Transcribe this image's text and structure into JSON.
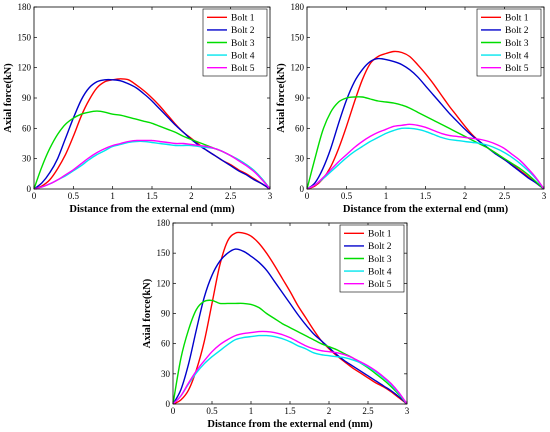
{
  "chart_data": [
    {
      "type": "line",
      "xlabel": "Distance from the external end (mm)",
      "ylabel": "Axial force(kN)",
      "xlim": [
        0,
        3
      ],
      "ylim": [
        0,
        180
      ],
      "xticks": [
        "0",
        "0.5",
        "1",
        "1.5",
        "2",
        "2.5",
        "3"
      ],
      "yticks": [
        "0",
        "30",
        "60",
        "90",
        "120",
        "150",
        "180"
      ],
      "grid": false,
      "legend_position": "top-right",
      "series": [
        {
          "name": "Bolt 1",
          "color": "#ff0000",
          "x": [
            0,
            0.1,
            0.2,
            0.3,
            0.4,
            0.5,
            0.6,
            0.7,
            0.8,
            0.9,
            1.0,
            1.1,
            1.2,
            1.3,
            1.4,
            1.5,
            1.6,
            1.7,
            1.8,
            1.9,
            2.0,
            2.1,
            2.2,
            2.3,
            2.4,
            2.5,
            2.6,
            2.7,
            2.8,
            2.9,
            3.0
          ],
          "y": [
            0,
            3,
            9,
            20,
            34,
            52,
            72,
            88,
            100,
            106,
            108,
            109,
            108,
            103,
            97,
            90,
            82,
            73,
            64,
            56,
            50,
            44,
            38,
            33,
            28,
            24,
            19,
            15,
            10,
            5,
            0
          ]
        },
        {
          "name": "Bolt 2",
          "color": "#0000cc",
          "x": [
            0,
            0.1,
            0.2,
            0.3,
            0.4,
            0.5,
            0.6,
            0.7,
            0.8,
            0.9,
            1.0,
            1.1,
            1.2,
            1.3,
            1.4,
            1.5,
            1.6,
            1.7,
            1.8,
            1.9,
            2.0,
            2.1,
            2.2,
            2.3,
            2.4,
            2.5,
            2.6,
            2.7,
            2.8,
            2.9,
            3.0
          ],
          "y": [
            0,
            6,
            16,
            30,
            50,
            70,
            88,
            100,
            106,
            108,
            108,
            107,
            104,
            100,
            94,
            87,
            79,
            71,
            63,
            56,
            49,
            43,
            38,
            33,
            28,
            23,
            18,
            14,
            9,
            5,
            0
          ]
        },
        {
          "name": "Bolt 3",
          "color": "#00dd00",
          "x": [
            0,
            0.1,
            0.2,
            0.3,
            0.4,
            0.5,
            0.6,
            0.7,
            0.8,
            0.9,
            1.0,
            1.1,
            1.2,
            1.3,
            1.4,
            1.5,
            1.6,
            1.7,
            1.8,
            1.9,
            2.0,
            2.1,
            2.2,
            2.3,
            2.4,
            2.5,
            2.6,
            2.7,
            2.8,
            2.9,
            3.0
          ],
          "y": [
            0,
            22,
            40,
            54,
            64,
            70,
            74,
            76,
            77,
            76,
            74,
            73,
            71,
            69,
            67,
            65,
            62,
            59,
            56,
            52,
            49,
            46,
            43,
            40,
            37,
            33,
            29,
            24,
            18,
            10,
            0
          ]
        },
        {
          "name": "Bolt 4",
          "color": "#00e5ee",
          "x": [
            0,
            0.1,
            0.2,
            0.3,
            0.4,
            0.5,
            0.6,
            0.7,
            0.8,
            0.9,
            1.0,
            1.1,
            1.2,
            1.3,
            1.4,
            1.5,
            1.6,
            1.7,
            1.8,
            1.9,
            2.0,
            2.1,
            2.2,
            2.3,
            2.4,
            2.5,
            2.6,
            2.7,
            2.8,
            2.9,
            3.0
          ],
          "y": [
            0,
            2,
            5,
            9,
            13,
            18,
            23,
            29,
            34,
            38,
            42,
            44,
            46,
            47,
            47,
            46,
            45,
            44,
            43,
            43,
            43,
            42,
            41,
            40,
            37,
            33,
            29,
            24,
            18,
            10,
            0
          ]
        },
        {
          "name": "Bolt 5",
          "color": "#ff00ff",
          "x": [
            0,
            0.1,
            0.2,
            0.3,
            0.4,
            0.5,
            0.6,
            0.7,
            0.8,
            0.9,
            1.0,
            1.1,
            1.2,
            1.3,
            1.4,
            1.5,
            1.6,
            1.7,
            1.8,
            1.9,
            2.0,
            2.1,
            2.2,
            2.3,
            2.4,
            2.5,
            2.6,
            2.7,
            2.8,
            2.9,
            3.0
          ],
          "y": [
            0,
            2,
            5,
            9,
            14,
            19,
            25,
            31,
            36,
            40,
            43,
            45,
            47,
            48,
            48,
            48,
            47,
            46,
            45,
            45,
            44,
            43,
            42,
            40,
            37,
            33,
            28,
            23,
            17,
            9,
            0
          ]
        }
      ]
    },
    {
      "type": "line",
      "xlabel": "Distance from the external end (mm)",
      "ylabel": "Axial force(kN)",
      "xlim": [
        0,
        3
      ],
      "ylim": [
        0,
        180
      ],
      "xticks": [
        "0",
        "0.5",
        "1",
        "1.5",
        "2",
        "2.5",
        "3"
      ],
      "yticks": [
        "0",
        "30",
        "60",
        "90",
        "120",
        "150",
        "180"
      ],
      "grid": false,
      "legend_position": "top-right",
      "series": [
        {
          "name": "Bolt 1",
          "color": "#ff0000",
          "x": [
            0,
            0.1,
            0.2,
            0.3,
            0.4,
            0.5,
            0.6,
            0.7,
            0.8,
            0.9,
            1.0,
            1.1,
            1.2,
            1.3,
            1.4,
            1.5,
            1.6,
            1.7,
            1.8,
            1.9,
            2.0,
            2.1,
            2.2,
            2.3,
            2.4,
            2.5,
            2.6,
            2.7,
            2.8,
            2.9,
            3.0
          ],
          "y": [
            0,
            3,
            10,
            22,
            40,
            62,
            86,
            108,
            124,
            131,
            134,
            136,
            135,
            131,
            123,
            114,
            104,
            93,
            82,
            72,
            62,
            53,
            46,
            40,
            35,
            29,
            24,
            18,
            12,
            6,
            0
          ]
        },
        {
          "name": "Bolt 2",
          "color": "#0000cc",
          "x": [
            0,
            0.1,
            0.2,
            0.3,
            0.4,
            0.5,
            0.6,
            0.7,
            0.8,
            0.9,
            1.0,
            1.1,
            1.2,
            1.3,
            1.4,
            1.5,
            1.6,
            1.7,
            1.8,
            1.9,
            2.0,
            2.1,
            2.2,
            2.3,
            2.4,
            2.5,
            2.6,
            2.7,
            2.8,
            2.9,
            3.0
          ],
          "y": [
            0,
            6,
            20,
            40,
            65,
            88,
            106,
            118,
            126,
            129,
            128,
            126,
            123,
            118,
            111,
            102,
            93,
            84,
            75,
            67,
            59,
            52,
            46,
            40,
            34,
            29,
            23,
            17,
            11,
            6,
            0
          ]
        },
        {
          "name": "Bolt 3",
          "color": "#00dd00",
          "x": [
            0,
            0.1,
            0.2,
            0.3,
            0.4,
            0.5,
            0.6,
            0.7,
            0.8,
            0.9,
            1.0,
            1.1,
            1.2,
            1.3,
            1.4,
            1.5,
            1.6,
            1.7,
            1.8,
            1.9,
            2.0,
            2.1,
            2.2,
            2.3,
            2.4,
            2.5,
            2.6,
            2.7,
            2.8,
            2.9,
            3.0
          ],
          "y": [
            0,
            30,
            58,
            76,
            86,
            90,
            91,
            91,
            89,
            87,
            86,
            85,
            83,
            80,
            76,
            72,
            68,
            64,
            60,
            56,
            52,
            48,
            44,
            40,
            35,
            30,
            25,
            20,
            14,
            7,
            0
          ]
        },
        {
          "name": "Bolt 4",
          "color": "#00e5ee",
          "x": [
            0,
            0.1,
            0.2,
            0.3,
            0.4,
            0.5,
            0.6,
            0.7,
            0.8,
            0.9,
            1.0,
            1.1,
            1.2,
            1.3,
            1.4,
            1.5,
            1.6,
            1.7,
            1.8,
            1.9,
            2.0,
            2.1,
            2.2,
            2.3,
            2.4,
            2.5,
            2.6,
            2.7,
            2.8,
            2.9,
            3.0
          ],
          "y": [
            0,
            4,
            10,
            17,
            24,
            31,
            37,
            42,
            47,
            51,
            55,
            58,
            60,
            60,
            59,
            57,
            54,
            51,
            49,
            48,
            47,
            46,
            45,
            43,
            40,
            36,
            31,
            25,
            18,
            10,
            0
          ]
        },
        {
          "name": "Bolt 5",
          "color": "#ff00ff",
          "x": [
            0,
            0.1,
            0.2,
            0.3,
            0.4,
            0.5,
            0.6,
            0.7,
            0.8,
            0.9,
            1.0,
            1.1,
            1.2,
            1.3,
            1.4,
            1.5,
            1.6,
            1.7,
            1.8,
            1.9,
            2.0,
            2.1,
            2.2,
            2.3,
            2.4,
            2.5,
            2.6,
            2.7,
            2.8,
            2.9,
            3.0
          ],
          "y": [
            0,
            4,
            11,
            19,
            27,
            34,
            41,
            47,
            52,
            56,
            59,
            62,
            63,
            64,
            63,
            61,
            58,
            55,
            53,
            52,
            51,
            50,
            49,
            47,
            44,
            40,
            34,
            28,
            20,
            11,
            0
          ]
        }
      ]
    },
    {
      "type": "line",
      "xlabel": "Distance from the external end (mm)",
      "ylabel": "Axial force(kN)",
      "xlim": [
        0,
        3
      ],
      "ylim": [
        0,
        180
      ],
      "xticks": [
        "0",
        "0.5",
        "1",
        "1.5",
        "2",
        "2.5",
        "3"
      ],
      "yticks": [
        "0",
        "30",
        "60",
        "90",
        "120",
        "150",
        "180"
      ],
      "grid": false,
      "legend_position": "top-right",
      "series": [
        {
          "name": "Bolt 1",
          "color": "#ff0000",
          "x": [
            0,
            0.1,
            0.2,
            0.3,
            0.4,
            0.5,
            0.6,
            0.7,
            0.8,
            0.9,
            1.0,
            1.1,
            1.2,
            1.3,
            1.4,
            1.5,
            1.6,
            1.7,
            1.8,
            1.9,
            2.0,
            2.1,
            2.2,
            2.3,
            2.4,
            2.5,
            2.6,
            2.7,
            2.8,
            2.9,
            3.0
          ],
          "y": [
            0,
            4,
            14,
            34,
            62,
            100,
            138,
            162,
            170,
            170,
            167,
            160,
            150,
            138,
            125,
            112,
            98,
            86,
            74,
            63,
            55,
            48,
            42,
            36,
            31,
            26,
            21,
            17,
            12,
            6,
            0
          ]
        },
        {
          "name": "Bolt 2",
          "color": "#0000cc",
          "x": [
            0,
            0.1,
            0.2,
            0.3,
            0.4,
            0.5,
            0.6,
            0.7,
            0.8,
            0.9,
            1.0,
            1.1,
            1.2,
            1.3,
            1.4,
            1.5,
            1.6,
            1.7,
            1.8,
            1.9,
            2.0,
            2.1,
            2.2,
            2.3,
            2.4,
            2.5,
            2.6,
            2.7,
            2.8,
            2.9,
            3.0
          ],
          "y": [
            0,
            14,
            40,
            74,
            106,
            128,
            142,
            150,
            154,
            152,
            147,
            141,
            133,
            122,
            111,
            100,
            89,
            79,
            70,
            63,
            56,
            49,
            43,
            38,
            33,
            28,
            23,
            18,
            13,
            7,
            0
          ]
        },
        {
          "name": "Bolt 3",
          "color": "#00dd00",
          "x": [
            0,
            0.1,
            0.2,
            0.3,
            0.4,
            0.5,
            0.6,
            0.7,
            0.8,
            0.9,
            1.0,
            1.1,
            1.2,
            1.3,
            1.4,
            1.5,
            1.6,
            1.7,
            1.8,
            1.9,
            2.0,
            2.1,
            2.2,
            2.3,
            2.4,
            2.5,
            2.6,
            2.7,
            2.8,
            2.9,
            3.0
          ],
          "y": [
            0,
            45,
            74,
            94,
            102,
            103,
            100,
            100,
            100,
            100,
            99,
            96,
            90,
            85,
            80,
            76,
            72,
            68,
            64,
            60,
            57,
            54,
            50,
            46,
            41,
            36,
            30,
            24,
            17,
            9,
            0
          ]
        },
        {
          "name": "Bolt 4",
          "color": "#00e5ee",
          "x": [
            0,
            0.1,
            0.2,
            0.3,
            0.4,
            0.5,
            0.6,
            0.7,
            0.8,
            0.9,
            1.0,
            1.1,
            1.2,
            1.3,
            1.4,
            1.5,
            1.6,
            1.7,
            1.8,
            1.9,
            2.0,
            2.1,
            2.2,
            2.3,
            2.4,
            2.5,
            2.6,
            2.7,
            2.8,
            2.9,
            3.0
          ],
          "y": [
            0,
            8,
            20,
            31,
            40,
            47,
            53,
            59,
            64,
            66,
            67,
            68,
            68,
            67,
            65,
            62,
            58,
            55,
            51,
            49,
            48,
            47,
            46,
            44,
            41,
            37,
            32,
            26,
            19,
            10,
            0
          ]
        },
        {
          "name": "Bolt 5",
          "color": "#ff00ff",
          "x": [
            0,
            0.1,
            0.2,
            0.3,
            0.4,
            0.5,
            0.6,
            0.7,
            0.8,
            0.9,
            1.0,
            1.1,
            1.2,
            1.3,
            1.4,
            1.5,
            1.6,
            1.7,
            1.8,
            1.9,
            2.0,
            2.1,
            2.2,
            2.3,
            2.4,
            2.5,
            2.6,
            2.7,
            2.8,
            2.9,
            3.0
          ],
          "y": [
            0,
            8,
            21,
            33,
            43,
            52,
            59,
            64,
            68,
            70,
            71,
            72,
            72,
            71,
            69,
            66,
            62,
            58,
            55,
            53,
            52,
            51,
            49,
            46,
            42,
            38,
            33,
            27,
            20,
            11,
            0
          ]
        }
      ]
    }
  ]
}
